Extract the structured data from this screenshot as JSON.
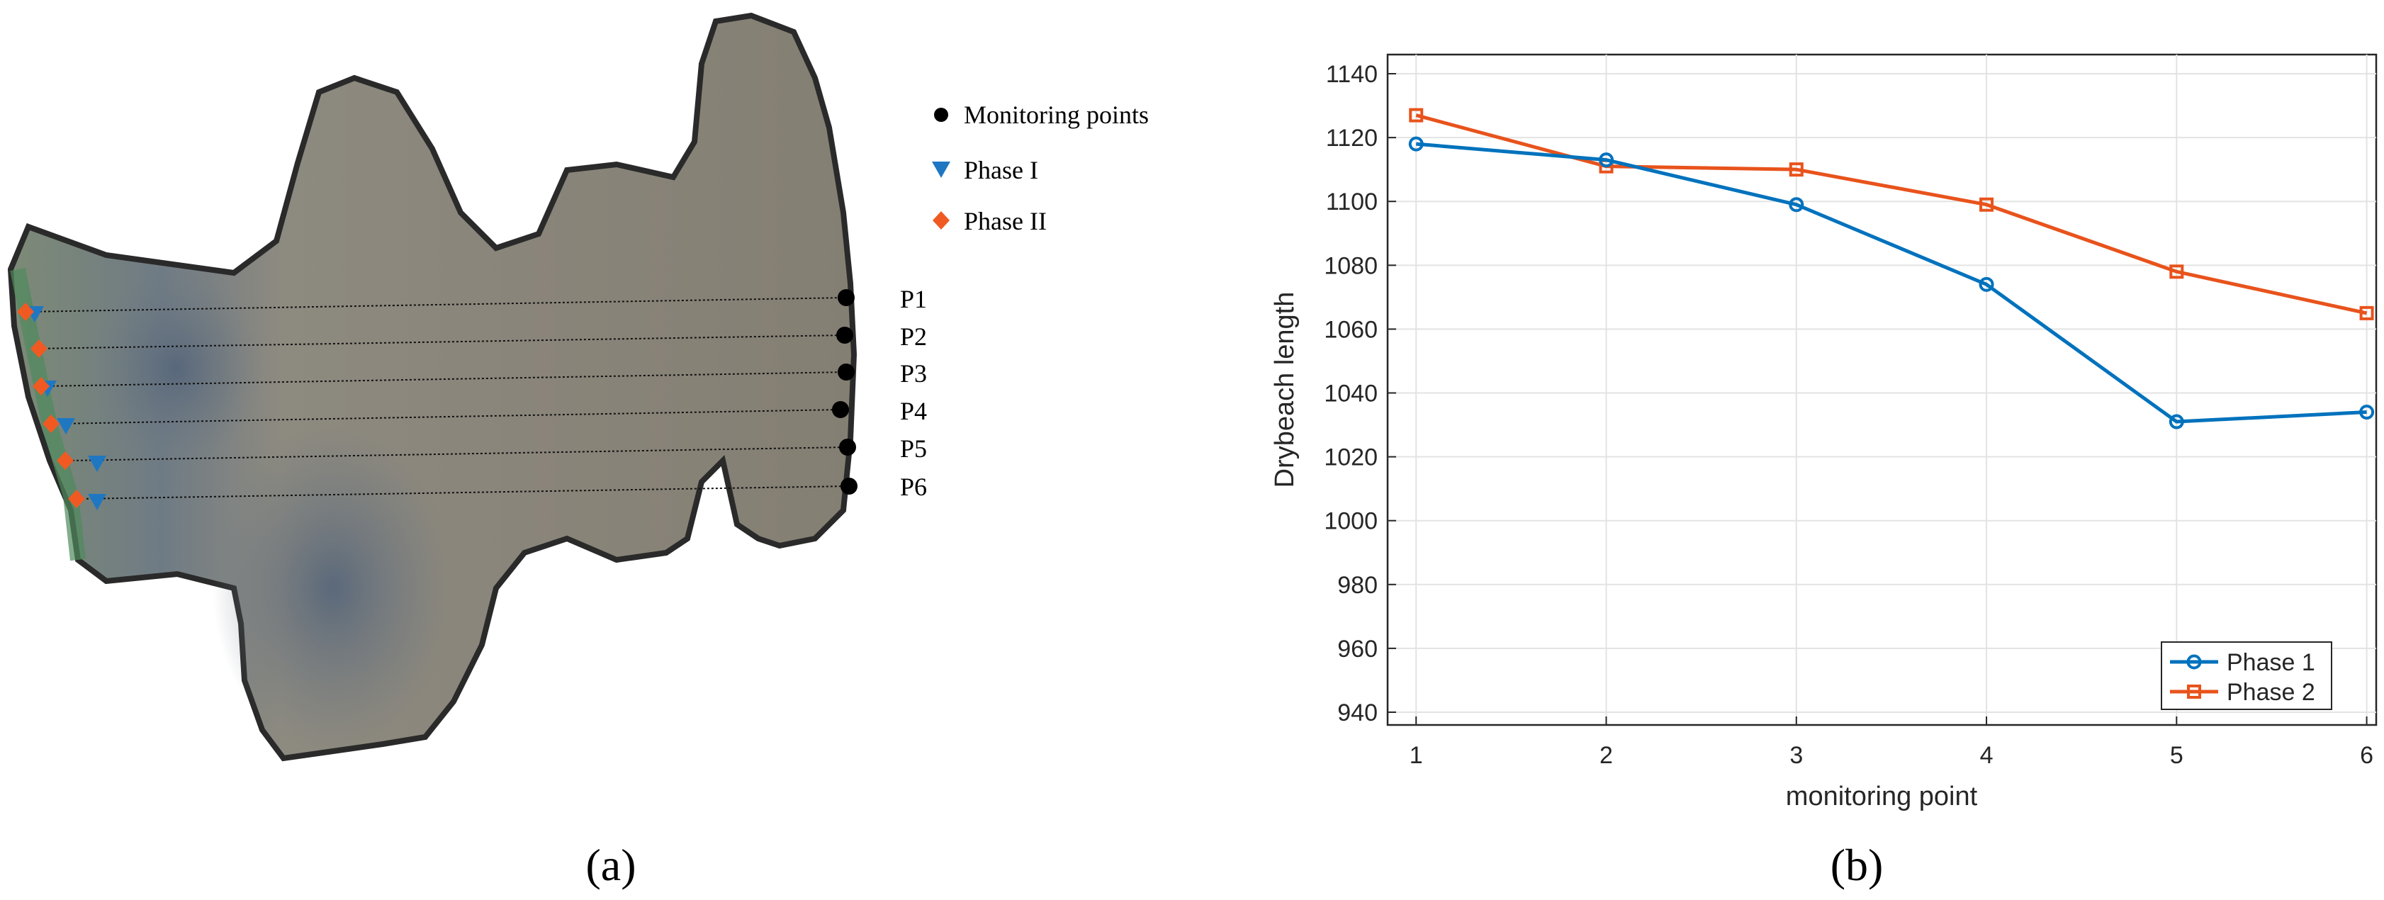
{
  "panel_a": {
    "caption": "(a)",
    "legend": [
      {
        "label": "Monitoring points",
        "marker": "circle",
        "color": "#000000"
      },
      {
        "label": "Phase I",
        "marker": "triangle-down",
        "color": "#1f77c2"
      },
      {
        "label": "Phase II",
        "marker": "diamond",
        "color": "#f05a22"
      }
    ],
    "points": [
      "P1",
      "P2",
      "P3",
      "P4",
      "P5",
      "P6"
    ]
  },
  "panel_b": {
    "caption": "(b)"
  },
  "chart_data": {
    "type": "line",
    "title": "",
    "xlabel": "monitoring point",
    "ylabel": "Drybeach length",
    "x": [
      1,
      2,
      3,
      4,
      5,
      6
    ],
    "xlim": [
      0.85,
      6.05
    ],
    "ylim": [
      936,
      1146
    ],
    "xticks": [
      1,
      2,
      3,
      4,
      5,
      6
    ],
    "yticks": [
      940,
      960,
      980,
      1000,
      1020,
      1040,
      1060,
      1080,
      1100,
      1120,
      1140
    ],
    "grid": true,
    "legend_position": "bottom-right",
    "series": [
      {
        "name": "Phase 1",
        "color": "#0072bd",
        "marker": "circle",
        "values": [
          1118,
          1113,
          1099,
          1074,
          1031,
          1034
        ]
      },
      {
        "name": "Phase 2",
        "color": "#e8531c",
        "marker": "square",
        "values": [
          1127,
          1111,
          1110,
          1099,
          1078,
          1065
        ]
      }
    ]
  }
}
